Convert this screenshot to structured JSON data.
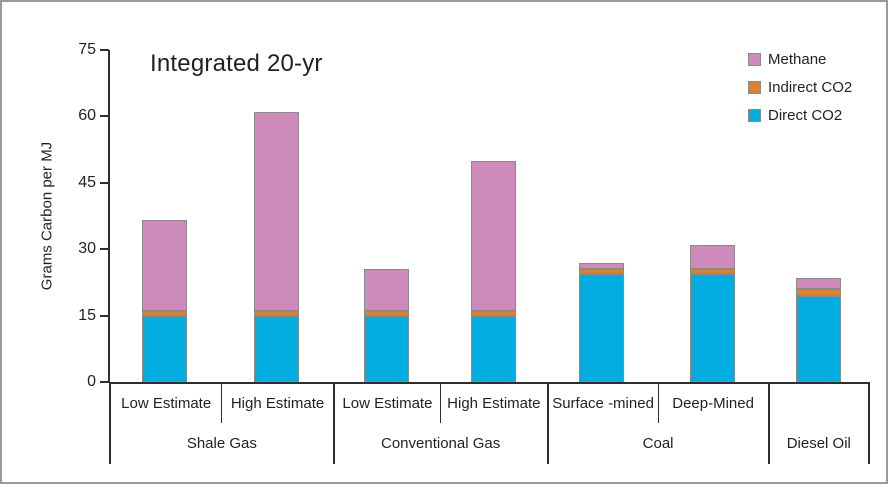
{
  "figure": {
    "background": "#ffffff",
    "frame_border_color": "#9a9a9a",
    "axis_color": "#2e2e2e",
    "text_color": "#231f20",
    "segment_border_color": "#8a8a8a"
  },
  "chart_data": {
    "type": "bar",
    "stacked": true,
    "title": "Integrated 20-yr",
    "xlabel": "",
    "ylabel": "Grams Carbon per MJ",
    "ylim": [
      0,
      75
    ],
    "yticks": [
      0,
      15,
      30,
      45,
      60,
      75
    ],
    "grid": false,
    "legend_position": "top-right",
    "legend": [
      {
        "label": "Methane",
        "key": "methane",
        "color": "#cf8abc"
      },
      {
        "label": "Indirect CO2",
        "key": "indirect_co2",
        "color": "#d9822f"
      },
      {
        "label": "Direct CO2",
        "key": "direct_co2",
        "color": "#00ace0"
      }
    ],
    "stack_order_bottom_to_top": [
      "direct_co2",
      "indirect_co2",
      "methane"
    ],
    "units": "grams carbon per MJ",
    "groups": [
      {
        "label": "Shale Gas",
        "width_frac": 0.294,
        "bars": [
          {
            "label": "Low Estimate",
            "direct_co2": 15,
            "indirect_co2": 1,
            "methane": 20.5,
            "total": 36.5
          },
          {
            "label": "High Estimate",
            "direct_co2": 15,
            "indirect_co2": 1,
            "methane": 45,
            "total": 61
          }
        ]
      },
      {
        "label": "Conventional Gas",
        "width_frac": 0.281,
        "bars": [
          {
            "label": "Low Estimate",
            "direct_co2": 15,
            "indirect_co2": 1,
            "methane": 9.5,
            "total": 25.5
          },
          {
            "label": "High Estimate",
            "direct_co2": 15,
            "indirect_co2": 1,
            "methane": 34,
            "total": 50
          }
        ]
      },
      {
        "label": "Coal",
        "width_frac": 0.2905,
        "bars": [
          {
            "label": "Surface -mined",
            "direct_co2": 24.5,
            "indirect_co2": 1,
            "methane": 1.5,
            "total": 27
          },
          {
            "label": "Deep-Mined",
            "direct_co2": 24.5,
            "indirect_co2": 1,
            "methane": 5.5,
            "total": 31
          }
        ]
      },
      {
        "label": "Diesel Oil",
        "width_frac": 0.1345,
        "bars": [
          {
            "label": "",
            "direct_co2": 19.5,
            "indirect_co2": 1.5,
            "methane": 2.5,
            "total": 23.5
          }
        ]
      }
    ]
  }
}
